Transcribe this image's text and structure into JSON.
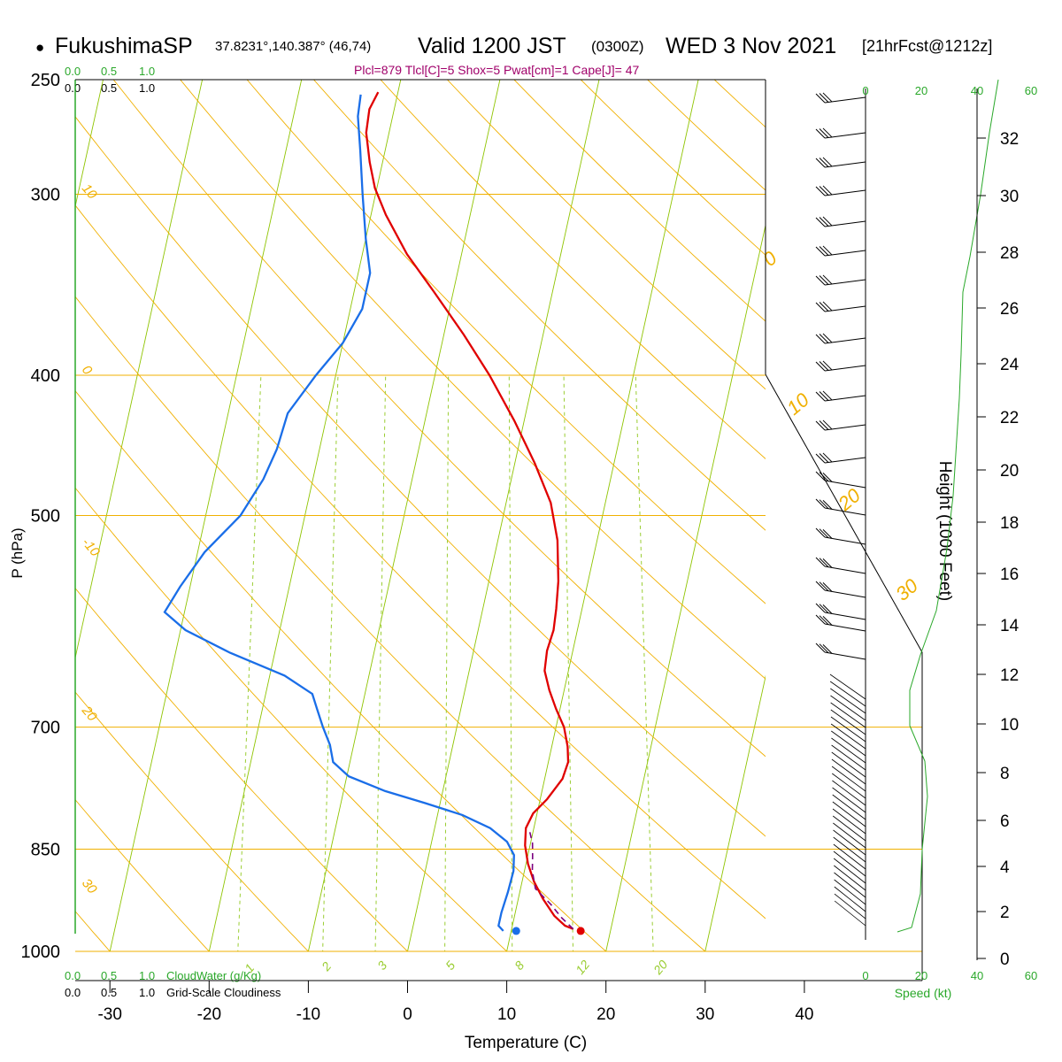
{
  "header": {
    "bullet": "●",
    "station": "FukushimaSP",
    "coords": "37.8231°,140.387° (46,74)",
    "valid": "Valid 1200 JST",
    "zulu": "(0300Z)",
    "date": "WED 3 Nov 2021",
    "forecast": "[21hrFcst@1212z]",
    "indices": "Plcl=879 Tlcl[C]=5 Shox=5 Pwat[cm]=1 Cape[J]= 47"
  },
  "colors": {
    "temperature": "#e00000",
    "dewpoint": "#1a6ee8",
    "parcel": "#7a0080",
    "isotherm": "#8fc400",
    "dry_adiabat": "#f0b000",
    "mixing_ratio": "#9acd32",
    "axis_green": "#2aa82a",
    "indices_text": "#a0006a"
  },
  "left_scales": {
    "top_green": [
      "0.0",
      "0.5",
      "1.0"
    ],
    "top_black": [
      "0.0",
      "0.5",
      "1.0"
    ],
    "bottom_green": [
      "0.0",
      "0.5",
      "1.0"
    ],
    "bottom_green_label": "CloudWater (g/Kg)",
    "bottom_black": [
      "0.0",
      "0.5",
      "1.0"
    ],
    "bottom_black_label": "Grid-Scale Cloudiness"
  },
  "speed_axis": {
    "ticks": [
      "0",
      "20",
      "40",
      "60"
    ],
    "label": "Speed (kt)"
  },
  "chart_data": {
    "type": "line",
    "title": "FukushimaSP Valid 1200 JST (0300Z) WED 3 Nov 2021",
    "xlabel": "Temperature (C)",
    "ylabel": "P (hPa)",
    "y2label": "Height (1000 Feet)",
    "xlim": [
      -33,
      47
    ],
    "ylim": [
      1030,
      250
    ],
    "yscale": "log",
    "x_ticks": [
      "-30",
      "-20",
      "-10",
      "0",
      "10",
      "20",
      "30",
      "40"
    ],
    "y_ticks": [
      {
        "p": 250,
        "label": "250"
      },
      {
        "p": 300,
        "label": "300"
      },
      {
        "p": 400,
        "label": "400"
      },
      {
        "p": 500,
        "label": "500"
      },
      {
        "p": 700,
        "label": "700"
      },
      {
        "p": 850,
        "label": "850"
      },
      {
        "p": 1000,
        "label": "1000"
      }
    ],
    "height_ticks": [
      "0",
      "2",
      "4",
      "6",
      "8",
      "10",
      "12",
      "14",
      "16",
      "18",
      "20",
      "22",
      "24",
      "26",
      "28",
      "30",
      "32"
    ],
    "isotherm_labels": [
      {
        "t": -10,
        "label": "-10"
      },
      {
        "t": 0,
        "label": "0"
      },
      {
        "t": 10,
        "label": "10"
      },
      {
        "t": 20,
        "label": "20"
      },
      {
        "t": 30,
        "label": "30"
      }
    ],
    "adiabat_labels": [
      "30",
      "20",
      "10",
      "0",
      "10",
      "20",
      "30"
    ],
    "mixing_ratio_labels": [
      "1",
      "2",
      "3",
      "5",
      "8",
      "12",
      "20"
    ],
    "series": [
      {
        "name": "Temperature",
        "points": [
          [
            16.2,
            965
          ],
          [
            15.3,
            960
          ],
          [
            14.0,
            945
          ],
          [
            12.5,
            920
          ],
          [
            11.2,
            895
          ],
          [
            10.2,
            870
          ],
          [
            9.5,
            845
          ],
          [
            9.2,
            822
          ],
          [
            9.6,
            803
          ],
          [
            10.7,
            785
          ],
          [
            11.8,
            760
          ],
          [
            12.0,
            740
          ],
          [
            11.6,
            722
          ],
          [
            10.8,
            700
          ],
          [
            9.6,
            680
          ],
          [
            8.5,
            660
          ],
          [
            7.6,
            640
          ],
          [
            7.4,
            620
          ],
          [
            7.6,
            600
          ],
          [
            7.4,
            580
          ],
          [
            7.0,
            555
          ],
          [
            6.0,
            520
          ],
          [
            4.5,
            490
          ],
          [
            2.0,
            460
          ],
          [
            -1.0,
            430
          ],
          [
            -4.5,
            400
          ],
          [
            -8.0,
            375
          ],
          [
            -12.0,
            350
          ],
          [
            -15.5,
            330
          ],
          [
            -18.5,
            310
          ],
          [
            -20.2,
            297
          ],
          [
            -21.3,
            285
          ],
          [
            -22.3,
            272
          ],
          [
            -22.5,
            262
          ],
          [
            -22.0,
            255
          ]
        ]
      },
      {
        "name": "Dewpoint",
        "points": [
          [
            9.2,
            968
          ],
          [
            8.6,
            960
          ],
          [
            8.6,
            940
          ],
          [
            8.8,
            910
          ],
          [
            8.9,
            880
          ],
          [
            8.6,
            858
          ],
          [
            7.6,
            840
          ],
          [
            5.6,
            822
          ],
          [
            2.5,
            805
          ],
          [
            -1.5,
            790
          ],
          [
            -5.8,
            775
          ],
          [
            -9.8,
            757
          ],
          [
            -11.7,
            740
          ],
          [
            -12.4,
            720
          ],
          [
            -13.5,
            700
          ],
          [
            -14.5,
            680
          ],
          [
            -15.3,
            664
          ],
          [
            -18.5,
            645
          ],
          [
            -24.5,
            622
          ],
          [
            -29.5,
            600
          ],
          [
            -32.0,
            583
          ],
          [
            -31.0,
            560
          ],
          [
            -29.3,
            530
          ],
          [
            -26.5,
            500
          ],
          [
            -25.0,
            472
          ],
          [
            -24.3,
            450
          ],
          [
            -24.0,
            425
          ],
          [
            -22.0,
            400
          ],
          [
            -20.0,
            380
          ],
          [
            -18.8,
            360
          ],
          [
            -18.8,
            340
          ],
          [
            -20.0,
            322
          ],
          [
            -21.3,
            300
          ],
          [
            -22.5,
            280
          ],
          [
            -23.5,
            265
          ],
          [
            -23.7,
            256
          ]
        ]
      },
      {
        "name": "Parcel",
        "points": [
          [
            16.2,
            965
          ],
          [
            14.8,
            948
          ],
          [
            13.4,
            928
          ],
          [
            11.5,
            905
          ],
          [
            10.8,
            880
          ],
          [
            10.5,
            860
          ],
          [
            10.2,
            842
          ],
          [
            9.6,
            825
          ]
        ]
      }
    ],
    "surface_points": [
      {
        "name": "Surface temperature",
        "t": 17.0,
        "p": 968
      },
      {
        "name": "Surface dewpoint",
        "t": 10.5,
        "p": 968
      }
    ]
  }
}
